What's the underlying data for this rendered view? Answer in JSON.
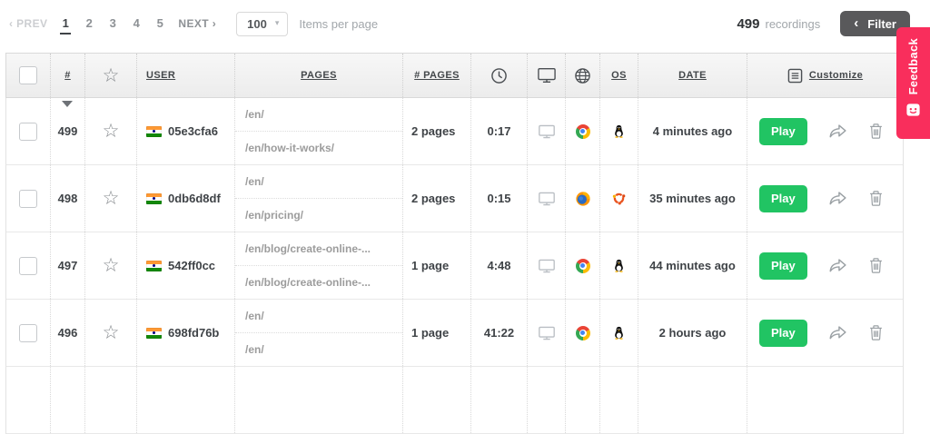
{
  "toolbar": {
    "prev": "‹ PREV",
    "pages": [
      "1",
      "2",
      "3",
      "4",
      "5"
    ],
    "active_page": "1",
    "next": "NEXT ›",
    "items_per_page_value": "100",
    "items_per_page_caret": "▾",
    "items_per_page_label": "Items per page",
    "total_count": "499",
    "total_label": "recordings",
    "filter_chevron": "‹",
    "filter_label": "Filter"
  },
  "feedback": {
    "label": "Feedback",
    "color": "#f92e5c"
  },
  "colors": {
    "play_green": "#21c463",
    "filter_gray": "#59595b",
    "feedback_red": "#f92e5c"
  },
  "table": {
    "headers": {
      "number": "#",
      "star_icon": "☆",
      "user": "USER",
      "pages": "PAGES",
      "page_count": "# PAGES",
      "duration_icon": "clock-icon",
      "device_icon": "monitor-icon",
      "browser_icon": "globe-icon",
      "os": "OS",
      "date": "DATE",
      "customize": "Customize"
    },
    "play_label": "Play",
    "rows": [
      {
        "number": "499",
        "flag": "india",
        "user": "05e3cfa6",
        "pages": [
          "/en/",
          "/en/how-it-works/"
        ],
        "page_count": "2 pages",
        "duration": "0:17",
        "device": "desktop",
        "browser": "chrome",
        "os": "linux",
        "date": "4 minutes ago"
      },
      {
        "number": "498",
        "flag": "india",
        "user": "0db6d8df",
        "pages": [
          "/en/",
          "/en/pricing/"
        ],
        "page_count": "2 pages",
        "duration": "0:15",
        "device": "desktop",
        "browser": "firefox",
        "os": "ubuntu",
        "date": "35 minutes ago"
      },
      {
        "number": "497",
        "flag": "india",
        "user": "542ff0cc",
        "pages": [
          "/en/blog/create-online-...",
          "/en/blog/create-online-..."
        ],
        "page_count": "1 page",
        "duration": "4:48",
        "device": "desktop",
        "browser": "chrome",
        "os": "linux",
        "date": "44 minutes ago"
      },
      {
        "number": "496",
        "flag": "india",
        "user": "698fd76b",
        "pages": [
          "/en/",
          "/en/"
        ],
        "page_count": "1 page",
        "duration": "41:22",
        "device": "desktop",
        "browser": "chrome",
        "os": "linux",
        "date": "2 hours ago"
      }
    ]
  }
}
